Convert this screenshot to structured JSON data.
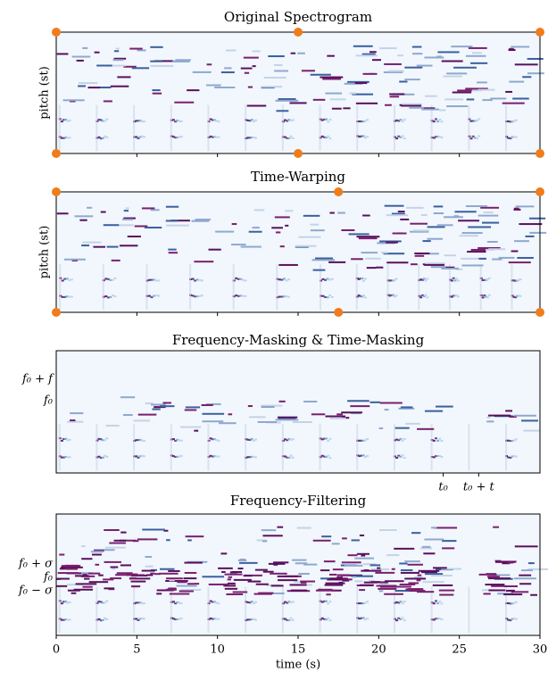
{
  "chart_data": [
    {
      "type": "spectrogram",
      "title": "Original Spectrogram",
      "ylabel": "pitch (st)",
      "xlim": [
        0,
        30
      ],
      "xticks": [
        5,
        10,
        15,
        20,
        25
      ],
      "xtick_labels": false,
      "control_points": [
        0,
        15,
        30
      ],
      "control_color": "#f07c1a"
    },
    {
      "type": "spectrogram",
      "title": "Time-Warping",
      "ylabel": "pitch (st)",
      "xlim": [
        0,
        30
      ],
      "xticks": [
        5,
        10,
        15,
        20,
        25
      ],
      "xtick_labels": false,
      "control_points": [
        0,
        17.5,
        30
      ],
      "control_color": "#f07c1a"
    },
    {
      "type": "spectrogram",
      "title": "Frequency-Masking & Time-Masking",
      "xlim": [
        0,
        30
      ],
      "xticks": [
        {
          "value": 24,
          "label": "t₀"
        },
        {
          "value": 26.2,
          "label": "t₀ + t"
        }
      ],
      "xtick_labels": true,
      "time_mask": [
        24,
        26.2
      ],
      "freq_labels": [
        "f₀ + f",
        "f₀"
      ]
    },
    {
      "type": "spectrogram",
      "title": "Frequency-Filtering",
      "xlabel": "time (s)",
      "xlim": [
        0,
        30
      ],
      "xticks": [
        0,
        5,
        10,
        15,
        20,
        25,
        30
      ],
      "xtick_labels": true,
      "time_mask": [
        24,
        26.2
      ],
      "freq_labels": [
        "f₀ + σ",
        "f₀",
        "f₀ − σ"
      ]
    }
  ]
}
